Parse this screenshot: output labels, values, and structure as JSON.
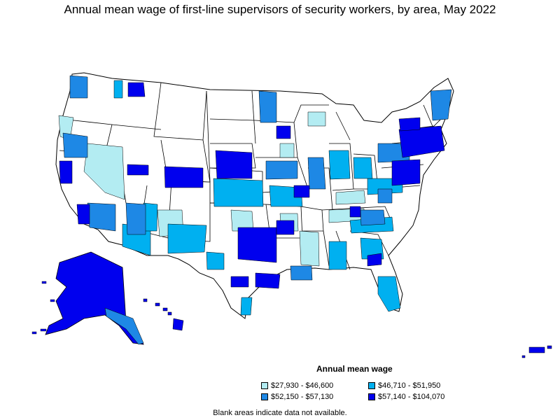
{
  "title": "Annual mean wage of first-line supervisors of security workers, by area, May 2022",
  "legend": {
    "title": "Annual mean wage",
    "items": [
      {
        "label": "$27,930 - $46,600",
        "color": "#b3ecf2"
      },
      {
        "label": "$46,710 - $51,950",
        "color": "#00b0f0"
      },
      {
        "label": "$52,150 - $57,130",
        "color": "#1e88e5"
      },
      {
        "label": "$57,140 - $104,070",
        "color": "#0000ee"
      }
    ]
  },
  "note": "Blank areas indicate data not available."
}
